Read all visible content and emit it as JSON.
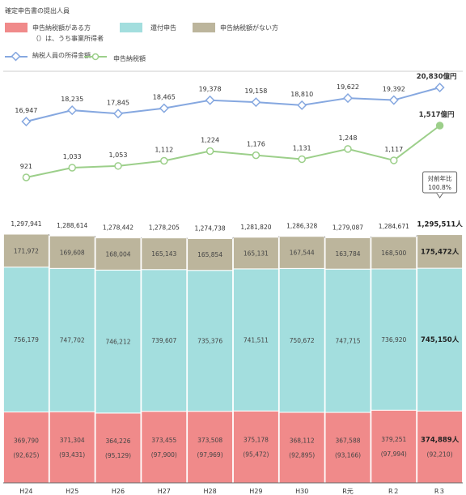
{
  "legend": {
    "title": "確定申告書の提出人員",
    "with_tax": "申告納税額がある方",
    "with_tax_note": "（）は、うち事業所得者",
    "refund": "還付申告",
    "no_tax": "申告納税額がない方",
    "income_amount": "納税人員の所得金額",
    "tax_amount": "申告納税額"
  },
  "colors": {
    "with_tax": "#f08a8a",
    "refund": "#a3dede",
    "no_tax": "#bcb59c",
    "income_line": "#86a8e0",
    "tax_line": "#9ccf8a"
  },
  "chart_data": {
    "type": "bar",
    "stacked": true,
    "categories": [
      "H24",
      "H25",
      "H26",
      "H27",
      "H28",
      "H29",
      "H30",
      "R元",
      "R２",
      "R３"
    ],
    "series": [
      {
        "key": "with_tax",
        "name": "申告納税額がある方",
        "values": [
          369790,
          371304,
          364226,
          373455,
          373508,
          375178,
          368112,
          367588,
          379251,
          374889
        ],
        "labels": [
          "369,790",
          "371,304",
          "364,226",
          "373,455",
          "373,508",
          "375,178",
          "368,112",
          "367,588",
          "379,251",
          "374,889人"
        ],
        "sub_labels": [
          "(92,625)",
          "(93,431)",
          "(95,129)",
          "(97,900)",
          "(97,969)",
          "(95,472)",
          "(92,895)",
          "(93,166)",
          "(97,994)",
          "(92,210)"
        ]
      },
      {
        "key": "refund",
        "name": "還付申告",
        "values": [
          756179,
          747702,
          746212,
          739607,
          735376,
          741511,
          750672,
          747715,
          736920,
          745150
        ],
        "labels": [
          "756,179",
          "747,702",
          "746,212",
          "739,607",
          "735,376",
          "741,511",
          "750,672",
          "747,715",
          "736,920",
          "745,150人"
        ]
      },
      {
        "key": "no_tax",
        "name": "申告納税額がない方",
        "values": [
          171972,
          169608,
          168004,
          165143,
          165854,
          165131,
          167544,
          163784,
          168500,
          175472
        ],
        "labels": [
          "171,972",
          "169,608",
          "168,004",
          "165,143",
          "165,854",
          "165,131",
          "167,544",
          "163,784",
          "168,500",
          "175,472人"
        ]
      }
    ],
    "totals": [
      1297941,
      1288614,
      1278442,
      1278205,
      1274738,
      1281820,
      1286328,
      1279087,
      1284671,
      1295511
    ],
    "total_labels": [
      "1,297,941",
      "1,288,614",
      "1,278,442",
      "1,278,205",
      "1,274,738",
      "1,281,820",
      "1,286,328",
      "1,279,087",
      "1,284,671",
      "1,295,511人"
    ],
    "lines": [
      {
        "key": "income_line",
        "name": "納税人員の所得金額",
        "values": [
          16947,
          18235,
          17845,
          18465,
          19378,
          19158,
          18810,
          19622,
          19392,
          20830
        ],
        "labels": [
          "16,947",
          "18,235",
          "17,845",
          "18,465",
          "19,378",
          "19,158",
          "18,810",
          "19,622",
          "19,392",
          "20,830億円"
        ]
      },
      {
        "key": "tax_line",
        "name": "申告納税額",
        "values": [
          921,
          1033,
          1053,
          1112,
          1224,
          1176,
          1131,
          1248,
          1117,
          1517
        ],
        "labels": [
          "921",
          "1,033",
          "1,053",
          "1,112",
          "1,224",
          "1,176",
          "1,131",
          "1,248",
          "1,117",
          "1,517億円"
        ]
      }
    ],
    "callout": {
      "line1": "対前年比",
      "line2": "100.8%"
    }
  }
}
